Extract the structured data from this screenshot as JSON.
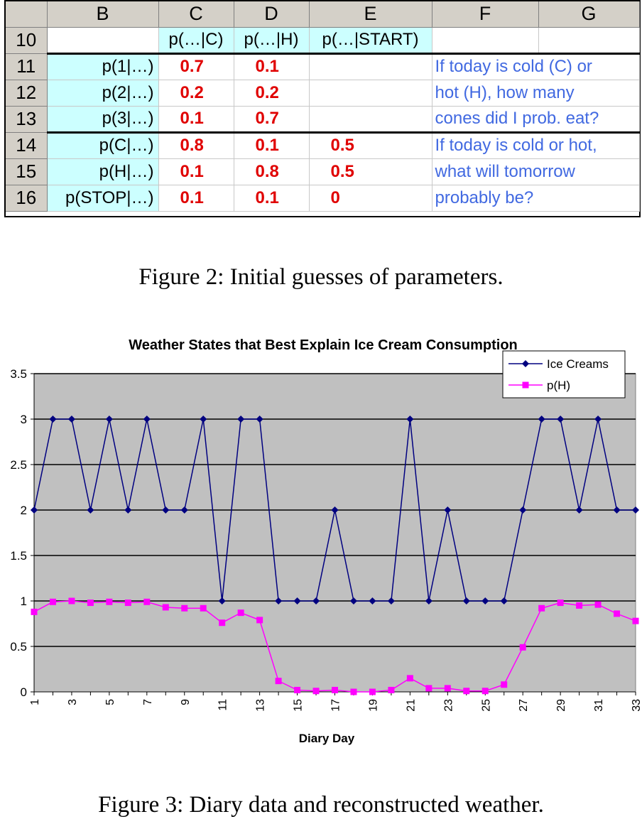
{
  "spreadsheet": {
    "column_headers": [
      "",
      "B",
      "C",
      "D",
      "E",
      "F",
      "G"
    ],
    "row_10": {
      "num": "10",
      "c": "p(…|C)",
      "d": "p(…|H)",
      "e": "p(…|START)"
    },
    "rows": [
      {
        "num": "11",
        "label": "p(1|…)",
        "c": "0.7",
        "d": "0.1",
        "e": ""
      },
      {
        "num": "12",
        "label": "p(2|…)",
        "c": "0.2",
        "d": "0.2",
        "e": ""
      },
      {
        "num": "13",
        "label": "p(3|…)",
        "c": "0.1",
        "d": "0.7",
        "e": ""
      },
      {
        "num": "14",
        "label": "p(C|…)",
        "c": "0.8",
        "d": "0.1",
        "e": "0.5"
      },
      {
        "num": "15",
        "label": "p(H|…)",
        "c": "0.1",
        "d": "0.8",
        "e": "0.5"
      },
      {
        "num": "16",
        "label": "p(STOP|…)",
        "c": "0.1",
        "d": "0.1",
        "e": "0"
      }
    ],
    "note_top": [
      "If today is cold (C) or",
      "hot (H), how many",
      "cones did I prob. eat?"
    ],
    "note_bottom": [
      "If today is cold or hot,",
      "what will tomorrow",
      "probably be?"
    ]
  },
  "figure2_caption": "Figure 2: Initial guesses of parameters.",
  "figure3_caption": "Figure 3: Diary data and reconstructed weather.",
  "chart_data": {
    "type": "line",
    "title": "Weather States that Best Explain Ice Cream Consumption",
    "xlabel": "Diary Day",
    "ylabel": "",
    "ylim": [
      0,
      3.5
    ],
    "yticks": [
      "0",
      "0.5",
      "1",
      "1.5",
      "2",
      "2.5",
      "3",
      "3.5"
    ],
    "x": [
      1,
      2,
      3,
      4,
      5,
      6,
      7,
      8,
      9,
      10,
      11,
      12,
      13,
      14,
      15,
      16,
      17,
      18,
      19,
      20,
      21,
      22,
      23,
      24,
      25,
      26,
      27,
      28,
      29,
      30,
      31,
      32,
      33
    ],
    "xticks": [
      "1",
      "3",
      "5",
      "7",
      "9",
      "11",
      "13",
      "15",
      "17",
      "19",
      "21",
      "23",
      "25",
      "27",
      "29",
      "31",
      "33"
    ],
    "grid": true,
    "legend_position": "top-right",
    "series": [
      {
        "name": "Ice Creams",
        "color": "#000080",
        "marker": "diamond",
        "values": [
          2,
          3,
          3,
          2,
          3,
          2,
          3,
          2,
          2,
          3,
          1,
          3,
          3,
          1,
          1,
          1,
          2,
          1,
          1,
          1,
          3,
          1,
          2,
          1,
          1,
          1,
          2,
          3,
          3,
          2,
          3,
          2,
          2
        ]
      },
      {
        "name": "p(H)",
        "color": "#ff00ff",
        "marker": "square",
        "values": [
          0.88,
          0.99,
          1.0,
          0.98,
          0.99,
          0.98,
          0.99,
          0.93,
          0.92,
          0.92,
          0.76,
          0.87,
          0.79,
          0.12,
          0.02,
          0.01,
          0.02,
          0.0,
          0.0,
          0.02,
          0.15,
          0.04,
          0.04,
          0.01,
          0.01,
          0.08,
          0.49,
          0.92,
          0.98,
          0.95,
          0.96,
          0.86,
          0.78
        ]
      }
    ],
    "plot_bg": "#c0c0c0"
  }
}
